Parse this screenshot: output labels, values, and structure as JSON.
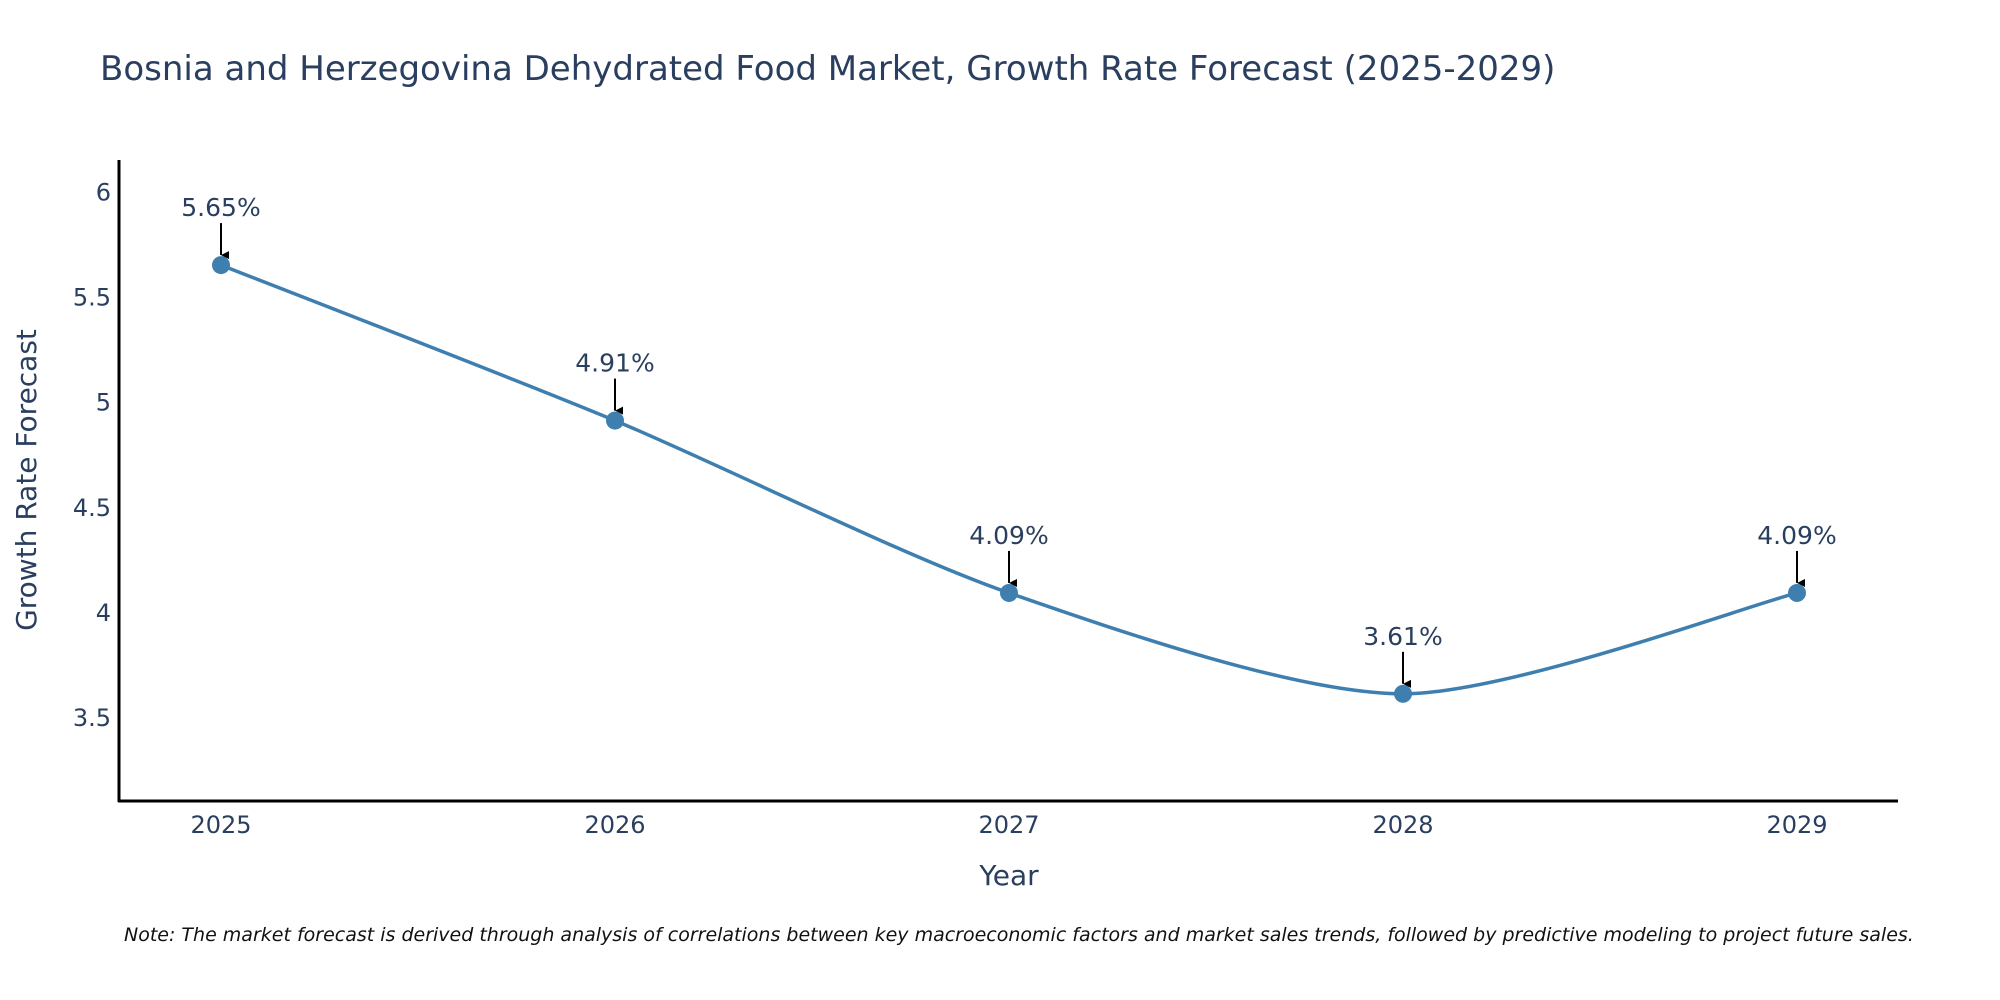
{
  "chart_data": {
    "type": "line",
    "title": "Bosnia and Herzegovina Dehydrated Food Market, Growth Rate Forecast (2025-2029)",
    "xlabel": "Year",
    "ylabel": "Growth Rate Forecast",
    "categories": [
      "2025",
      "2026",
      "2027",
      "2028",
      "2029"
    ],
    "series": [
      {
        "name": "Growth Rate Forecast",
        "values": [
          5.65,
          4.91,
          4.09,
          3.61,
          4.09
        ],
        "labels": [
          "5.65%",
          "4.91%",
          "4.09%",
          "3.61%",
          "4.09%"
        ],
        "color": "#3f7fb0"
      }
    ],
    "ylim": [
      3.1,
      6.15
    ],
    "yticks": [
      3.5,
      4,
      4.5,
      5,
      5.5,
      6
    ],
    "ytick_labels": [
      "3.5",
      "4",
      "4.5",
      "5",
      "5.5",
      "6"
    ],
    "grid": false,
    "note": "Note: The market forecast is derived through analysis of correlations between key macroeconomic factors and market sales trends, followed by predictive modeling to project future sales."
  },
  "colors": {
    "line": "#3f7fb0",
    "marker": "#3f7fb0",
    "axis": "#000000",
    "text": "#2a3f5f",
    "arrow": "#000000"
  }
}
